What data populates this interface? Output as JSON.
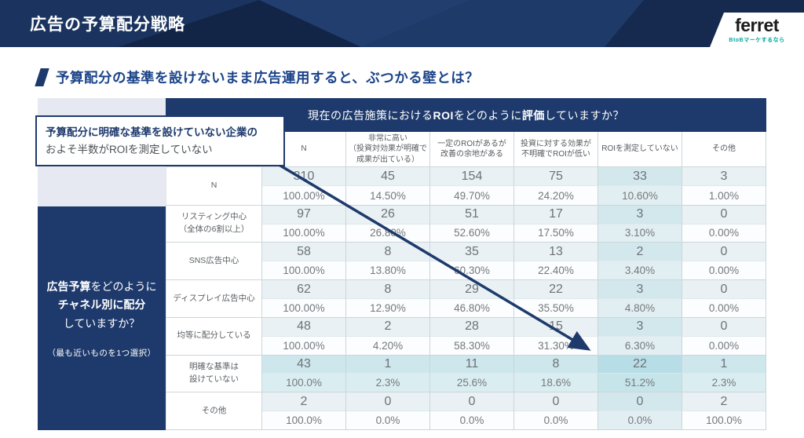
{
  "banner": {
    "title": "広告の予算配分戦略"
  },
  "logo": {
    "name": "ferret",
    "tagline": "BtoBマーケするなら",
    "tagline_color": "#00a79e"
  },
  "subtitle": "予算配分の基準を設けないまま広告運用すると、ぶつかる壁とは？",
  "callout": {
    "line1": "予算配分に明確な基準を設けていない企業の",
    "line2": "およそ半数がROIを測定していない"
  },
  "sidebar": {
    "question_lines": [
      [
        {
          "text": "広告予算",
          "bold": true
        },
        {
          "text": "をどのように",
          "bold": false
        }
      ],
      [
        {
          "text": "チャネル別に配分",
          "bold": true
        }
      ],
      [
        {
          "text": "していますか？",
          "bold": false
        }
      ]
    ],
    "note": "（最も近いものを1つ選択）"
  },
  "table": {
    "title_segments": [
      {
        "text": "現在の広告施策における",
        "bold": false
      },
      {
        "text": "ROI",
        "bold": true
      },
      {
        "text": "をどのように",
        "bold": false
      },
      {
        "text": "評価",
        "bold": true
      },
      {
        "text": "していますか？",
        "bold": false
      }
    ],
    "columns": [
      [
        "N"
      ],
      [
        "非常に高い",
        "（投資対効果が明確で",
        "成果が出ている）"
      ],
      [
        "一定のROIがあるが",
        "改善の余地がある"
      ],
      [
        "投資に対する効果が",
        "不明確でROIが低い"
      ],
      [
        "ROIを測定していない"
      ],
      [
        "その他"
      ]
    ],
    "highlight_col_index": 4,
    "rows": [
      {
        "label": [
          "N"
        ],
        "counts": [
          "310",
          "45",
          "154",
          "75",
          "33",
          "3"
        ],
        "pcts": [
          "100.00%",
          "14.50%",
          "49.70%",
          "24.20%",
          "10.60%",
          "1.00%"
        ],
        "highlight": false
      },
      {
        "label": [
          "リスティング中心",
          "（全体の6割以上）"
        ],
        "counts": [
          "97",
          "26",
          "51",
          "17",
          "3",
          "0"
        ],
        "pcts": [
          "100.00%",
          "26.80%",
          "52.60%",
          "17.50%",
          "3.10%",
          "0.00%"
        ],
        "highlight": false
      },
      {
        "label": [
          "SNS広告中心"
        ],
        "counts": [
          "58",
          "8",
          "35",
          "13",
          "2",
          "0"
        ],
        "pcts": [
          "100.00%",
          "13.80%",
          "60.30%",
          "22.40%",
          "3.40%",
          "0.00%"
        ],
        "highlight": false
      },
      {
        "label": [
          "ディスプレイ広告中心"
        ],
        "counts": [
          "62",
          "8",
          "29",
          "22",
          "3",
          "0"
        ],
        "pcts": [
          "100.00%",
          "12.90%",
          "46.80%",
          "35.50%",
          "4.80%",
          "0.00%"
        ],
        "highlight": false
      },
      {
        "label": [
          "均等に配分している"
        ],
        "counts": [
          "48",
          "2",
          "28",
          "15",
          "3",
          "0"
        ],
        "pcts": [
          "100.00%",
          "4.20%",
          "58.30%",
          "31.30%",
          "6.30%",
          "0.00%"
        ],
        "highlight": false
      },
      {
        "label": [
          "明確な基準は",
          "設けていない"
        ],
        "counts": [
          "43",
          "1",
          "11",
          "8",
          "22",
          "1"
        ],
        "pcts": [
          "100.0%",
          "2.3%",
          "25.6%",
          "18.6%",
          "51.2%",
          "2.3%"
        ],
        "highlight": true
      },
      {
        "label": [
          "その他"
        ],
        "counts": [
          "2",
          "0",
          "0",
          "0",
          "0",
          "2"
        ],
        "pcts": [
          "100.0%",
          "0.0%",
          "0.0%",
          "0.0%",
          "0.0%",
          "100.0%"
        ],
        "highlight": false
      }
    ]
  },
  "colors": {
    "navy": "#1e3a6c",
    "banner_base": "#16294e",
    "subtitle_blue": "#1b4489",
    "roi_col_tint": "#d3e8ed",
    "highlight_row_tint": "#cde7ec",
    "intersection_tint": "#b7dde6",
    "highlight_border": "#14335f"
  }
}
